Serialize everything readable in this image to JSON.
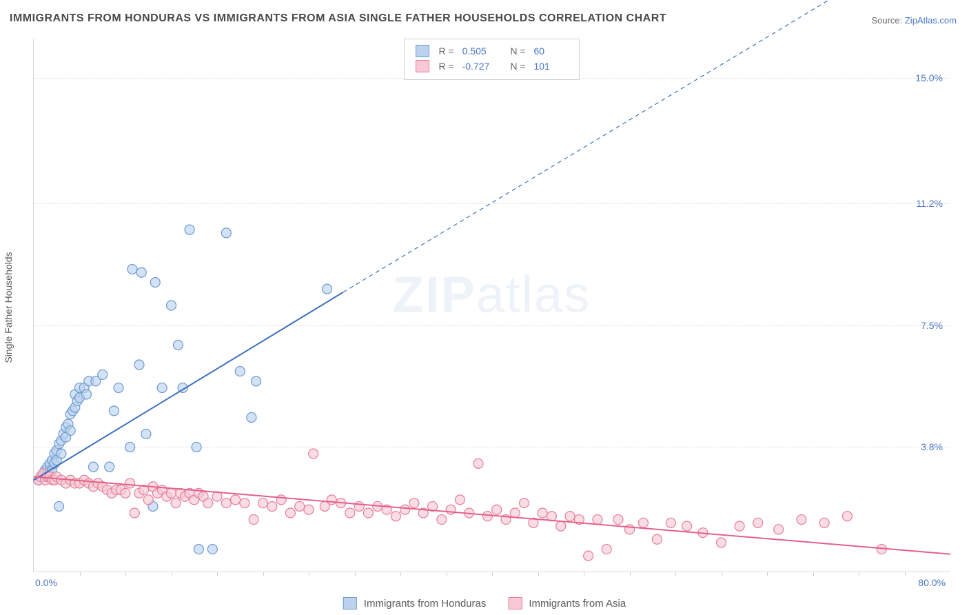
{
  "title": "IMMIGRANTS FROM HONDURAS VS IMMIGRANTS FROM ASIA SINGLE FATHER HOUSEHOLDS CORRELATION CHART",
  "source_label": "Source: ",
  "source_name": "ZipAtlas.com",
  "ylabel": "Single Father Households",
  "watermark_a": "ZIP",
  "watermark_b": "atlas",
  "chart": {
    "type": "scatter",
    "xlim": [
      0,
      80
    ],
    "ylim": [
      0,
      16.2
    ],
    "x_tick_labels": {
      "left": "0.0%",
      "right": "80.0%"
    },
    "y_ticks": [
      3.8,
      7.5,
      11.2,
      15.0
    ],
    "y_tick_labels": [
      "3.8%",
      "7.5%",
      "11.2%",
      "15.0%"
    ],
    "x_minor_ticks": [
      4,
      8,
      12,
      16,
      20,
      24,
      28,
      32,
      36,
      40,
      44,
      48,
      52,
      56,
      60,
      64,
      68,
      72,
      76
    ],
    "grid_color": "#e3e3e3",
    "background_color": "#ffffff",
    "series": [
      {
        "name": "Immigrants from Honduras",
        "color_fill": "#bcd2ee",
        "color_stroke": "#6b9ad1",
        "marker_size": 7,
        "stats": {
          "R": "0.505",
          "N": "60"
        },
        "trend": {
          "x1": 0,
          "y1": 2.8,
          "x2": 27,
          "y2": 8.5,
          "x2_dash": 70,
          "y2_dash": 17.5,
          "color": "#3f6fbf",
          "width": 2
        },
        "points": [
          [
            0.4,
            2.8
          ],
          [
            0.6,
            2.9
          ],
          [
            0.8,
            3.0
          ],
          [
            1.0,
            2.9
          ],
          [
            1.0,
            3.1
          ],
          [
            1.2,
            3.0
          ],
          [
            1.2,
            3.2
          ],
          [
            1.4,
            3.1
          ],
          [
            1.4,
            3.3
          ],
          [
            1.6,
            3.4
          ],
          [
            1.6,
            3.1
          ],
          [
            1.8,
            3.3
          ],
          [
            1.8,
            3.6
          ],
          [
            2.0,
            3.7
          ],
          [
            2.0,
            3.4
          ],
          [
            2.2,
            3.9
          ],
          [
            2.4,
            4.0
          ],
          [
            2.4,
            3.6
          ],
          [
            2.6,
            4.2
          ],
          [
            2.8,
            4.1
          ],
          [
            2.8,
            4.4
          ],
          [
            3.0,
            4.5
          ],
          [
            3.2,
            4.3
          ],
          [
            3.2,
            4.8
          ],
          [
            3.4,
            4.9
          ],
          [
            3.6,
            5.0
          ],
          [
            3.6,
            5.4
          ],
          [
            3.8,
            5.2
          ],
          [
            4.0,
            5.3
          ],
          [
            4.0,
            5.6
          ],
          [
            4.4,
            5.6
          ],
          [
            4.6,
            5.4
          ],
          [
            4.8,
            5.8
          ],
          [
            5.4,
            5.8
          ],
          [
            6.0,
            6.0
          ],
          [
            7.0,
            4.9
          ],
          [
            7.4,
            5.6
          ],
          [
            8.4,
            3.8
          ],
          [
            8.6,
            9.2
          ],
          [
            9.2,
            6.3
          ],
          [
            9.4,
            9.1
          ],
          [
            9.8,
            4.2
          ],
          [
            10.4,
            2.0
          ],
          [
            10.6,
            8.8
          ],
          [
            11.2,
            5.6
          ],
          [
            12.0,
            8.1
          ],
          [
            12.6,
            6.9
          ],
          [
            13.0,
            5.6
          ],
          [
            13.6,
            10.4
          ],
          [
            14.2,
            3.8
          ],
          [
            14.4,
            0.7
          ],
          [
            15.6,
            0.7
          ],
          [
            16.8,
            10.3
          ],
          [
            18.0,
            6.1
          ],
          [
            19.0,
            4.7
          ],
          [
            19.4,
            5.8
          ],
          [
            25.6,
            8.6
          ],
          [
            6.6,
            3.2
          ],
          [
            5.2,
            3.2
          ],
          [
            2.2,
            2.0
          ]
        ]
      },
      {
        "name": "Immigrants from Asia",
        "color_fill": "#f7c9d4",
        "color_stroke": "#e57d9a",
        "marker_size": 7,
        "stats": {
          "R": "-0.727",
          "N": "101"
        },
        "trend": {
          "x1": 0,
          "y1": 2.9,
          "x2": 80,
          "y2": 0.55,
          "color": "#e46087",
          "width": 2
        },
        "points": [
          [
            0.4,
            2.8
          ],
          [
            0.6,
            2.9
          ],
          [
            0.8,
            3.0
          ],
          [
            1.0,
            2.8
          ],
          [
            1.2,
            2.9
          ],
          [
            1.4,
            2.9
          ],
          [
            1.6,
            2.8
          ],
          [
            1.8,
            2.8
          ],
          [
            2.0,
            2.9
          ],
          [
            2.4,
            2.8
          ],
          [
            2.8,
            2.7
          ],
          [
            3.2,
            2.8
          ],
          [
            3.6,
            2.7
          ],
          [
            4.0,
            2.7
          ],
          [
            4.4,
            2.8
          ],
          [
            4.8,
            2.7
          ],
          [
            5.2,
            2.6
          ],
          [
            5.6,
            2.7
          ],
          [
            6.0,
            2.6
          ],
          [
            6.4,
            2.5
          ],
          [
            6.8,
            2.4
          ],
          [
            7.2,
            2.5
          ],
          [
            7.6,
            2.5
          ],
          [
            8.0,
            2.4
          ],
          [
            8.4,
            2.7
          ],
          [
            8.8,
            1.8
          ],
          [
            9.2,
            2.4
          ],
          [
            9.6,
            2.5
          ],
          [
            10.0,
            2.2
          ],
          [
            10.4,
            2.6
          ],
          [
            10.8,
            2.4
          ],
          [
            11.2,
            2.5
          ],
          [
            11.6,
            2.3
          ],
          [
            12.0,
            2.4
          ],
          [
            12.4,
            2.1
          ],
          [
            12.8,
            2.4
          ],
          [
            13.2,
            2.3
          ],
          [
            13.6,
            2.4
          ],
          [
            14.0,
            2.2
          ],
          [
            14.4,
            2.4
          ],
          [
            14.8,
            2.3
          ],
          [
            15.2,
            2.1
          ],
          [
            16.0,
            2.3
          ],
          [
            16.8,
            2.1
          ],
          [
            17.6,
            2.2
          ],
          [
            18.4,
            2.1
          ],
          [
            19.2,
            1.6
          ],
          [
            20.0,
            2.1
          ],
          [
            20.8,
            2.0
          ],
          [
            21.6,
            2.2
          ],
          [
            22.4,
            1.8
          ],
          [
            23.2,
            2.0
          ],
          [
            24.0,
            1.9
          ],
          [
            24.4,
            3.6
          ],
          [
            25.4,
            2.0
          ],
          [
            26.0,
            2.2
          ],
          [
            26.8,
            2.1
          ],
          [
            27.6,
            1.8
          ],
          [
            28.4,
            2.0
          ],
          [
            29.2,
            1.8
          ],
          [
            30.0,
            2.0
          ],
          [
            30.8,
            1.9
          ],
          [
            31.6,
            1.7
          ],
          [
            32.4,
            1.9
          ],
          [
            33.2,
            2.1
          ],
          [
            34.0,
            1.8
          ],
          [
            34.8,
            2.0
          ],
          [
            35.6,
            1.6
          ],
          [
            36.4,
            1.9
          ],
          [
            37.2,
            2.2
          ],
          [
            38.0,
            1.8
          ],
          [
            38.8,
            3.3
          ],
          [
            39.6,
            1.7
          ],
          [
            40.4,
            1.9
          ],
          [
            41.2,
            1.6
          ],
          [
            42.0,
            1.8
          ],
          [
            42.8,
            2.1
          ],
          [
            43.6,
            1.5
          ],
          [
            44.4,
            1.8
          ],
          [
            45.2,
            1.7
          ],
          [
            46.0,
            1.4
          ],
          [
            46.8,
            1.7
          ],
          [
            47.6,
            1.6
          ],
          [
            48.4,
            0.5
          ],
          [
            49.2,
            1.6
          ],
          [
            50.0,
            0.7
          ],
          [
            51.0,
            1.6
          ],
          [
            52.0,
            1.3
          ],
          [
            53.2,
            1.5
          ],
          [
            54.4,
            1.0
          ],
          [
            55.6,
            1.5
          ],
          [
            57.0,
            1.4
          ],
          [
            58.4,
            1.2
          ],
          [
            60.0,
            0.9
          ],
          [
            61.6,
            1.4
          ],
          [
            63.2,
            1.5
          ],
          [
            65.0,
            1.3
          ],
          [
            67.0,
            1.6
          ],
          [
            69.0,
            1.5
          ],
          [
            71.0,
            1.7
          ],
          [
            74.0,
            0.7
          ]
        ]
      }
    ]
  },
  "legend": {
    "items": [
      {
        "label": "Immigrants from Honduras",
        "fill": "#bcd2ee",
        "stroke": "#6b9ad1"
      },
      {
        "label": "Immigrants from Asia",
        "fill": "#f7c9d4",
        "stroke": "#e57d9a"
      }
    ]
  }
}
